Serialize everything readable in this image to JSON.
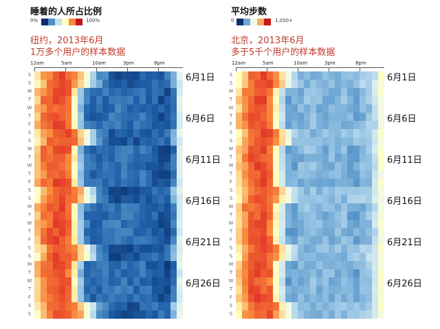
{
  "left_panel": {
    "legend_title": "睡着的人所占比例",
    "legend_min": "0%",
    "legend_max": "100%",
    "subtitle_line1": "纽约，2013年6月",
    "subtitle_line2": "1万多个用户的样本数据"
  },
  "right_panel": {
    "legend_title": "平均步数",
    "legend_min": "0",
    "legend_max": "1,050+",
    "subtitle_line1": "北京，2013年6月",
    "subtitle_line2": "多于5千个用户的样本数据"
  },
  "hour_labels": [
    "12am",
    "5am",
    "10am",
    "3pm",
    "8pm"
  ],
  "weekday_labels": [
    "S",
    "S",
    "M",
    "T",
    "W",
    "T",
    "F",
    "S",
    "S",
    "M",
    "T",
    "W",
    "T",
    "F",
    "S",
    "S",
    "M",
    "T",
    "W",
    "T",
    "F",
    "S",
    "S",
    "M",
    "T",
    "W",
    "T",
    "F",
    "S",
    "S"
  ],
  "date_labels": [
    "6月1日",
    "6月6日",
    "6月11日",
    "6月16日",
    "6月21日",
    "6月26日"
  ],
  "colors": {
    "scale": [
      "#08306b",
      "#1f5fa8",
      "#4f8fc6",
      "#8dbde0",
      "#c6e2f0",
      "#f0f9e8",
      "#ffffbf",
      "#fdd08a",
      "#f98a3c",
      "#e8452a",
      "#c8161d"
    ],
    "subtitle": "#c0392b"
  },
  "chart_data": [
    {
      "type": "heatmap",
      "title": "睡着的人所占比例",
      "subtitle": "纽约，2013年6月 1万多个用户的样本数据",
      "x_axis": "hour of day",
      "x_tick_labels": [
        "12am",
        "5am",
        "10am",
        "3pm",
        "8pm"
      ],
      "y_axis": "day of June 2013",
      "y_tick_labels": [
        "6月1日",
        "6月6日",
        "6月11日",
        "6月16日",
        "6月21日",
        "6月26日"
      ],
      "value_range": [
        "0%",
        "100%"
      ],
      "hourly_profile_weekday": [
        0.72,
        0.82,
        0.86,
        0.88,
        0.88,
        0.84,
        0.62,
        0.3,
        0.15,
        0.12,
        0.12,
        0.13,
        0.14,
        0.15,
        0.14,
        0.14,
        0.13,
        0.14,
        0.12,
        0.1,
        0.08,
        0.06,
        0.14,
        0.45
      ],
      "hourly_profile_weekend": [
        0.62,
        0.75,
        0.84,
        0.88,
        0.88,
        0.87,
        0.82,
        0.72,
        0.55,
        0.38,
        0.22,
        0.16,
        0.08,
        0.07,
        0.07,
        0.08,
        0.09,
        0.1,
        0.11,
        0.12,
        0.12,
        0.14,
        0.3,
        0.45
      ]
    },
    {
      "type": "heatmap",
      "title": "平均步数",
      "subtitle": "北京，2013年6月 多于5千个用户的样本数据",
      "x_axis": "hour of day",
      "x_tick_labels": [
        "12am",
        "5am",
        "10am",
        "3pm",
        "8pm"
      ],
      "y_axis": "day of June 2013",
      "y_tick_labels": [
        "6月1日",
        "6月6日",
        "6月11日",
        "6月16日",
        "6月21日",
        "6月26日"
      ],
      "value_range": [
        "0",
        "1,050+"
      ],
      "hourly_profile_weekday": [
        0.7,
        0.8,
        0.86,
        0.88,
        0.88,
        0.84,
        0.6,
        0.4,
        0.25,
        0.25,
        0.28,
        0.3,
        0.3,
        0.28,
        0.28,
        0.28,
        0.29,
        0.3,
        0.26,
        0.25,
        0.28,
        0.32,
        0.4,
        0.55
      ],
      "hourly_profile_weekend": [
        0.62,
        0.75,
        0.84,
        0.88,
        0.88,
        0.86,
        0.8,
        0.66,
        0.5,
        0.36,
        0.3,
        0.3,
        0.3,
        0.3,
        0.3,
        0.3,
        0.3,
        0.3,
        0.31,
        0.32,
        0.34,
        0.36,
        0.42,
        0.55
      ]
    }
  ]
}
